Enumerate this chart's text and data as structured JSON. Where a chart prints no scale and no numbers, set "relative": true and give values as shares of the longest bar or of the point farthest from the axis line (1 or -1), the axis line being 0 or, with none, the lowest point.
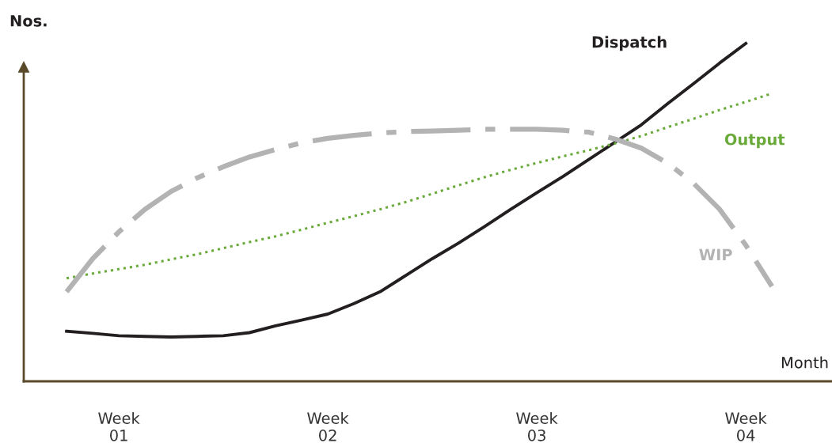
{
  "chart_data": {
    "type": "line",
    "relative": true,
    "xlabel": "Month",
    "ylabel": "Nos.",
    "categories": [
      null,
      null,
      null,
      "Week\n01",
      null,
      null,
      null,
      null,
      null,
      null,
      null,
      "Week\n02",
      null,
      null,
      null,
      null,
      null,
      null,
      null,
      "Week\n03",
      null,
      null,
      null,
      null,
      null,
      null,
      null,
      "Week\n04",
      null,
      null
    ],
    "legend": false,
    "grid": false,
    "marker": "none",
    "series": [
      {
        "name": "Dispatch",
        "color": "#231f20",
        "line_style": "solid",
        "values": [
          null,
          0.148,
          0.142,
          0.135,
          0.133,
          0.131,
          0.133,
          0.135,
          0.144,
          0.164,
          0.181,
          0.199,
          0.23,
          0.265,
          0.314,
          0.363,
          0.409,
          0.458,
          0.509,
          0.558,
          0.606,
          0.657,
          0.708,
          0.759,
          0.821,
          0.881,
          0.942,
          1.0,
          null,
          null
        ]
      },
      {
        "name": "Output",
        "color": "#6aaa3a",
        "line_style": "dotted",
        "values": [
          null,
          0.305,
          0.319,
          0.332,
          0.345,
          0.361,
          0.376,
          0.394,
          0.412,
          0.429,
          0.449,
          0.469,
          0.489,
          0.509,
          0.531,
          0.555,
          0.58,
          0.604,
          0.626,
          0.646,
          0.666,
          0.684,
          0.704,
          0.726,
          0.752,
          0.777,
          0.803,
          0.827,
          0.852,
          null
        ]
      },
      {
        "name": "WIP",
        "color": "#b3b3b3",
        "line_style": "dashdot",
        "values": [
          null,
          0.265,
          0.363,
          0.442,
          0.509,
          0.562,
          0.602,
          0.635,
          0.664,
          0.686,
          0.706,
          0.719,
          0.728,
          0.735,
          0.739,
          0.741,
          0.743,
          0.746,
          0.746,
          0.746,
          0.743,
          0.737,
          0.717,
          0.69,
          0.646,
          0.586,
          0.509,
          0.403,
          0.281,
          null
        ]
      }
    ]
  }
}
